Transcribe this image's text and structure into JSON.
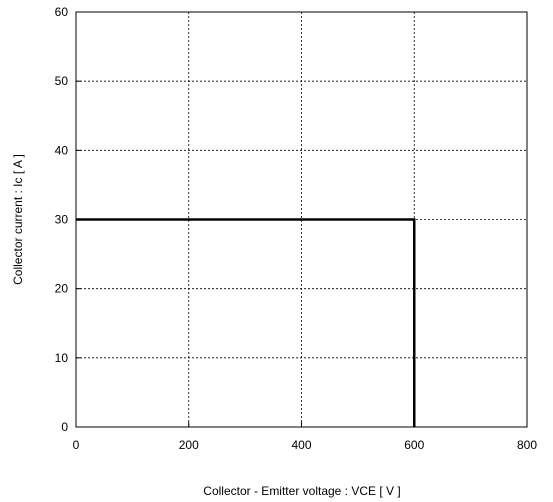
{
  "chart_data": {
    "type": "line",
    "title": "",
    "xlabel": "Collector - Emitter voltage  :  VCE  [ V ]",
    "ylabel": "Collector current  :  Ic  [ A ]",
    "xlim": [
      0,
      800
    ],
    "ylim": [
      0,
      60
    ],
    "x_ticks": [
      0,
      200,
      400,
      600,
      800
    ],
    "y_ticks": [
      0,
      10,
      20,
      30,
      40,
      50,
      60
    ],
    "grid": true,
    "grid_style": "dashed",
    "colors": {
      "line": "#000000",
      "grid": "#000000",
      "frame": "#000000"
    },
    "series": [
      {
        "x": [
          0,
          600,
          600
        ],
        "y": [
          30,
          30,
          0
        ]
      }
    ]
  }
}
